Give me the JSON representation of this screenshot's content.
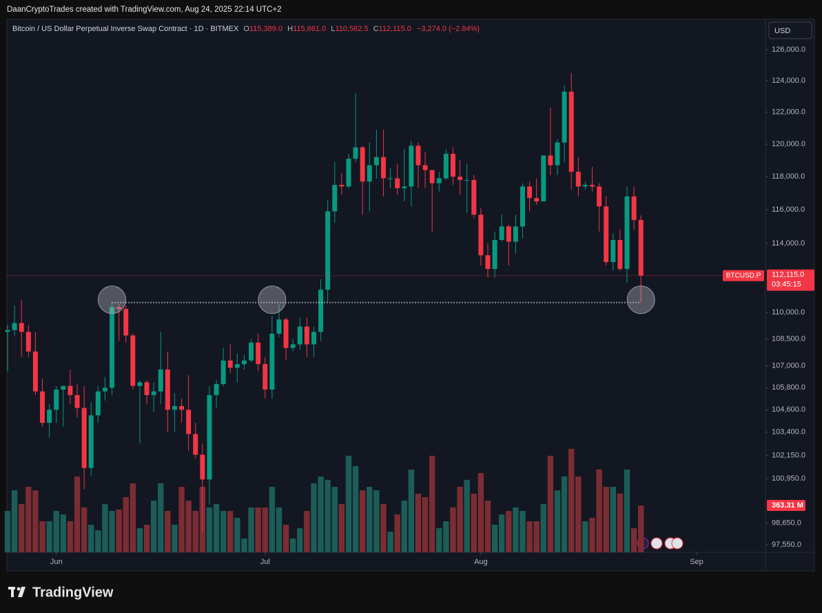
{
  "header": {
    "title": "DaanCryptoTrades created with TradingView.com, Aug 24, 2025 22:14 UTC+2",
    "currency": "USD"
  },
  "chart_data": {
    "type": "candlestick",
    "legend_line": {
      "symbol": "Bitcoin / US Dollar Perpetual Inverse Swap Contract · 1D · BITMEX",
      "ohlc": [
        {
          "key": "O",
          "value": "115,389.0"
        },
        {
          "key": "H",
          "value": "115,661.0"
        },
        {
          "key": "L",
          "value": "110,562.5"
        },
        {
          "key": "C",
          "value": "112,115.0"
        }
      ],
      "change": "−3,274.0 (−2.84%)"
    },
    "up_color": "#089981",
    "down_color": "#f23645",
    "volume_up_color": "#1c5d58",
    "volume_down_color": "#7b2d33",
    "log_scale": true,
    "grid": false,
    "xlim": [
      -0.1,
      108.8
    ],
    "xticks": [
      {
        "value": 7,
        "label": "Jun"
      },
      {
        "value": 37,
        "label": "Jul"
      },
      {
        "value": 68,
        "label": "Aug"
      },
      {
        "value": 99,
        "label": "Sep"
      }
    ],
    "ylim": [
      97170,
      128000
    ],
    "yticks": [
      {
        "value": 126000,
        "label": "126,000.0"
      },
      {
        "value": 124000,
        "label": "124,000.0"
      },
      {
        "value": 122000,
        "label": "122,000.0"
      },
      {
        "value": 120000,
        "label": "120,000.0"
      },
      {
        "value": 118000,
        "label": "118,000.0"
      },
      {
        "value": 116000,
        "label": "116,000.0"
      },
      {
        "value": 114000,
        "label": "114,000.0"
      },
      {
        "value": 110000,
        "label": "110,000.0"
      },
      {
        "value": 108500,
        "label": "108,500.0"
      },
      {
        "value": 107000,
        "label": "107,000.0"
      },
      {
        "value": 105800,
        "label": "105,800.0"
      },
      {
        "value": 104600,
        "label": "104,600.0"
      },
      {
        "value": 103400,
        "label": "103,400.0"
      },
      {
        "value": 102150,
        "label": "102,150.0"
      },
      {
        "value": 100950,
        "label": "100,950.0"
      },
      {
        "value": 98650,
        "label": "98,650.0"
      },
      {
        "value": 97550,
        "label": "97,550.0"
      }
    ],
    "volume_ylim": [
      0,
      1000
    ],
    "open": [
      108900,
      109000,
      109400,
      108900,
      107800,
      105600,
      103900,
      104600,
      105700,
      105900,
      105400,
      104700,
      101500,
      104300,
      105600,
      105800,
      110300,
      110200,
      108700,
      105900,
      106100,
      105400,
      105600,
      106800,
      104600,
      104800,
      104600,
      103300,
      102200,
      100900,
      105400,
      106000,
      107300,
      106900,
      107100,
      107300,
      108300,
      107100,
      105700,
      108800,
      109600,
      108000,
      108200,
      109200,
      108200,
      108900,
      111300,
      115900,
      117500,
      117400,
      119100,
      119800,
      117700,
      118700,
      119200,
      117900,
      117900,
      117300,
      117400,
      119900,
      118700,
      118400,
      117600,
      117900,
      119400,
      118000,
      117800,
      117800,
      115700,
      113300,
      112500,
      114200,
      115000,
      114100,
      115000,
      117400,
      116700,
      116500,
      119300,
      118700,
      120100,
      123300,
      118300,
      117400,
      117500,
      117400,
      116200,
      112900,
      114200,
      112500,
      116800,
      115389
    ],
    "high": [
      109300,
      110400,
      110700,
      109300,
      108900,
      106300,
      104900,
      105900,
      105900,
      106800,
      106000,
      105900,
      105000,
      105900,
      106400,
      110600,
      110500,
      110400,
      108800,
      106200,
      106200,
      106100,
      108900,
      107800,
      105500,
      105200,
      106500,
      103900,
      102800,
      105900,
      106200,
      108000,
      108200,
      107700,
      107600,
      108500,
      108800,
      107500,
      109800,
      110500,
      109700,
      108500,
      109700,
      109700,
      109200,
      111900,
      116600,
      118900,
      118200,
      119400,
      123200,
      119900,
      120100,
      120900,
      120900,
      118500,
      118800,
      119700,
      120200,
      120100,
      119500,
      118400,
      118300,
      119700,
      119800,
      119000,
      118800,
      118100,
      116100,
      114000,
      114700,
      115700,
      115100,
      115700,
      117600,
      117700,
      117900,
      119300,
      122300,
      120300,
      123700,
      124500,
      119200,
      117700,
      118600,
      117600,
      116800,
      114600,
      114800,
      117400,
      117400,
      115661
    ],
    "low": [
      106700,
      108700,
      107500,
      107500,
      105400,
      103700,
      103100,
      103900,
      103700,
      104900,
      104200,
      100400,
      101100,
      103900,
      105100,
      105400,
      108400,
      108300,
      105700,
      102800,
      104900,
      104500,
      104900,
      103400,
      103400,
      103900,
      102400,
      102000,
      98200,
      99600,
      104700,
      105900,
      106600,
      106100,
      106800,
      107200,
      106700,
      105200,
      105200,
      108600,
      107300,
      107800,
      107900,
      107500,
      107500,
      108400,
      110600,
      115200,
      116900,
      117300,
      118900,
      115700,
      115900,
      117900,
      116800,
      117300,
      116900,
      116500,
      116200,
      117300,
      117300,
      114700,
      117100,
      117800,
      117500,
      116900,
      115800,
      115500,
      112700,
      112000,
      112000,
      114100,
      112700,
      113400,
      114300,
      115900,
      116300,
      116500,
      118100,
      118100,
      118900,
      117200,
      116800,
      117200,
      117100,
      114700,
      112700,
      112400,
      112400,
      111700,
      114800,
      110562.5
    ],
    "close": [
      109000,
      109400,
      108900,
      107800,
      105600,
      103900,
      104600,
      105700,
      105900,
      105400,
      104700,
      101500,
      104300,
      105600,
      105800,
      110300,
      110200,
      108700,
      105900,
      106100,
      105400,
      105600,
      106800,
      104600,
      104800,
      104600,
      103300,
      102200,
      100900,
      105400,
      106000,
      107300,
      106900,
      107100,
      107300,
      108300,
      107100,
      105700,
      108800,
      109600,
      108000,
      108200,
      109200,
      108200,
      108900,
      111300,
      115900,
      117500,
      117400,
      119100,
      119800,
      117700,
      118700,
      119200,
      117900,
      117900,
      117300,
      117400,
      119900,
      118700,
      118400,
      117600,
      117900,
      119400,
      118000,
      117800,
      117800,
      115700,
      113300,
      112500,
      114200,
      115000,
      114100,
      115000,
      117400,
      116700,
      116500,
      119300,
      118700,
      120100,
      123300,
      118300,
      117400,
      117500,
      117400,
      116200,
      112900,
      114200,
      112500,
      116800,
      115389,
      112115
    ],
    "volume": [
      321,
      481,
      374,
      508,
      481,
      241,
      241,
      321,
      294,
      241,
      588,
      348,
      214,
      171,
      374,
      321,
      332,
      428,
      535,
      187,
      214,
      401,
      535,
      321,
      214,
      508,
      401,
      321,
      508,
      348,
      374,
      321,
      321,
      268,
      107,
      348,
      348,
      348,
      508,
      348,
      214,
      107,
      187,
      321,
      535,
      588,
      562,
      508,
      374,
      749,
      669,
      481,
      508,
      481,
      374,
      160,
      294,
      401,
      642,
      455,
      428,
      749,
      187,
      241,
      348,
      508,
      562,
      455,
      615,
      401,
      214,
      294,
      321,
      348,
      321,
      241,
      241,
      374,
      749,
      481,
      588,
      803,
      588,
      241,
      268,
      642,
      508,
      508,
      455,
      642,
      187,
      363.31
    ],
    "last_price": {
      "value": 112115,
      "label": "112,115.0"
    },
    "countdown": "03:45:15",
    "symbol_tag": "BTCUSD.P",
    "volume_label": {
      "value": 363.31,
      "label": "363.31 M"
    }
  },
  "footer": {
    "brand": "TradingView"
  }
}
